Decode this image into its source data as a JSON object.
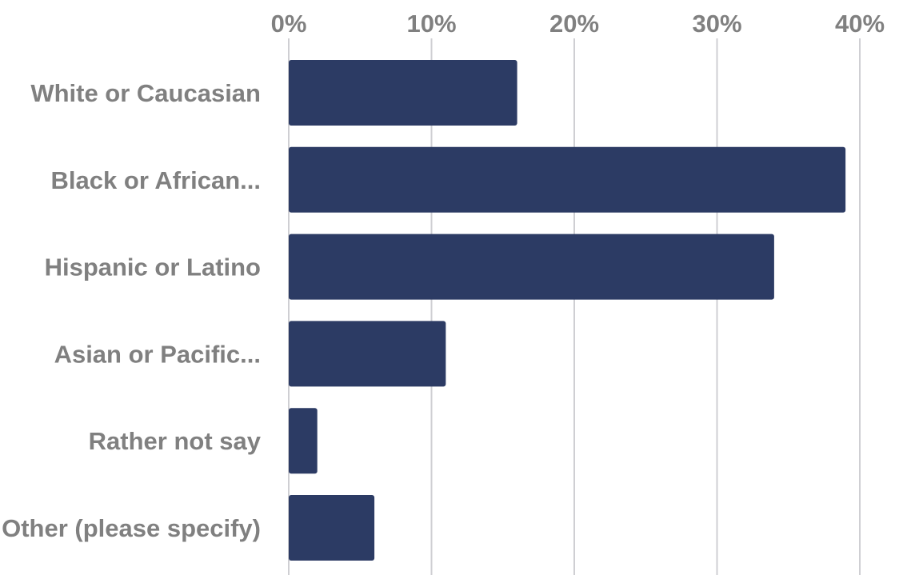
{
  "chart_data": {
    "type": "bar",
    "orientation": "horizontal",
    "categories": [
      "White or Caucasian",
      "Black or African...",
      "Hispanic or Latino",
      "Asian or Pacific...",
      "Rather not say",
      "Other (please specify)"
    ],
    "values": [
      16,
      39,
      34,
      11,
      2,
      6
    ],
    "value_unit": "%",
    "xlim": [
      0,
      40
    ],
    "x_ticks": [
      0,
      10,
      20,
      30,
      40
    ],
    "x_tick_labels": [
      "0%",
      "10%",
      "20%",
      "30%",
      "40%"
    ],
    "x_axis_position": "top",
    "grid": true,
    "title": "",
    "xlabel": "",
    "ylabel": "",
    "colors": {
      "bar": "#2c3b64",
      "text": "#808080",
      "grid": "#cfcfd3"
    }
  }
}
